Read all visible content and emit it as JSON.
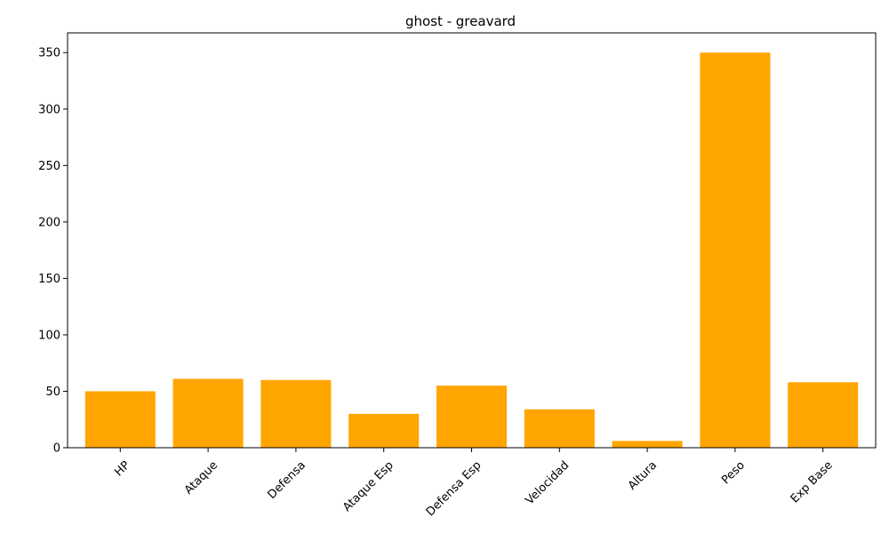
{
  "chart_data": {
    "type": "bar",
    "title": "ghost - greavard",
    "xlabel": "",
    "ylabel": "",
    "categories": [
      "HP",
      "Ataque",
      "Defensa",
      "Ataque Esp",
      "Defensa Esp",
      "Velocidad",
      "Altura",
      "Peso",
      "Exp Base"
    ],
    "values": [
      50,
      61,
      60,
      30,
      55,
      34,
      6,
      350,
      58
    ],
    "ylim": [
      0,
      367.5
    ],
    "yticks": [
      0,
      50,
      100,
      150,
      200,
      250,
      300,
      350
    ],
    "bar_color": "#ffa500",
    "grid": false,
    "legend": "none"
  }
}
